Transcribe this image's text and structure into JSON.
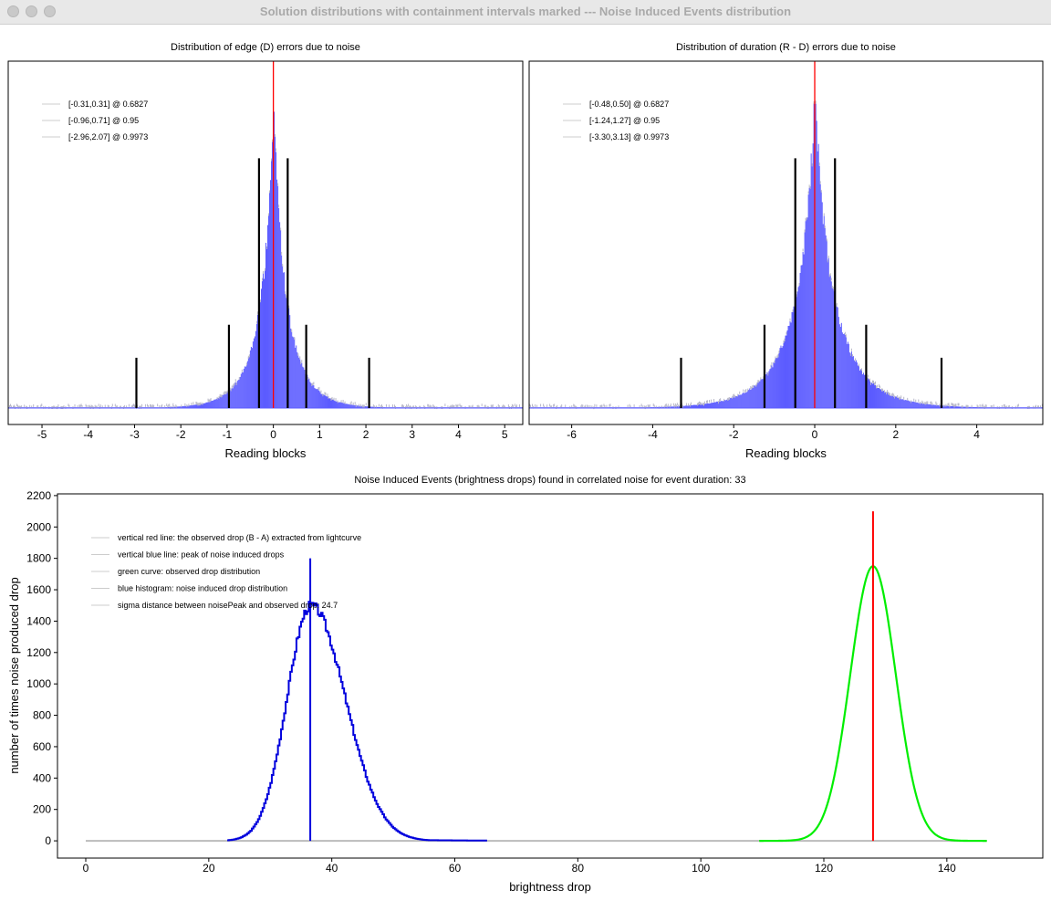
{
  "window": {
    "title": "Solution distributions with containment intervals marked --- Noise Induced Events distribution"
  },
  "colors": {
    "histogram": "#5b5bff",
    "red_line": "#ff0000",
    "blue": "#0000dd",
    "green": "#00ee00",
    "legend_line": "#cccccc",
    "interval_bar": "#000000"
  },
  "chart_data": [
    {
      "type": "bar",
      "title": "Distribution of edge (D) errors due to noise",
      "xlabel": "Reading blocks",
      "ylabel": "",
      "xlim": [
        -5.73,
        5.39
      ],
      "xticks": [
        "-5",
        "-4",
        "-3",
        "-2",
        "-1",
        "0",
        "1",
        "2",
        "3",
        "4",
        "5"
      ],
      "xtick_values": [
        -5,
        -4,
        -3,
        -2,
        -1,
        0,
        1,
        2,
        3,
        4,
        5
      ],
      "distribution": {
        "kind": "laplace-like",
        "center": 0,
        "scale": 0.22,
        "peak": 0.94
      },
      "center_line": 0,
      "intervals": [
        {
          "label": "[-0.31,0.31] @ 0.6827",
          "low": -0.31,
          "high": 0.31,
          "level": 0.6827,
          "bar_height": 0.72
        },
        {
          "label": "[-0.96,0.71] @ 0.95",
          "low": -0.96,
          "high": 0.71,
          "level": 0.95,
          "bar_height": 0.24
        },
        {
          "label": "[-2.96,2.07] @ 0.9973",
          "low": -2.96,
          "high": 2.07,
          "level": 0.9973,
          "bar_height": 0.145
        }
      ],
      "legend_position": "top-left"
    },
    {
      "type": "bar",
      "title": "Distribution of duration (R - D) errors due to noise",
      "xlabel": "Reading blocks",
      "ylabel": "",
      "xlim": [
        -7.05,
        5.63
      ],
      "xticks": [
        "-6",
        "-4",
        "-2",
        "0",
        "2",
        "4"
      ],
      "xtick_values": [
        -6,
        -4,
        -2,
        0,
        2,
        4
      ],
      "distribution": {
        "kind": "laplace-like",
        "center": 0,
        "scale": 0.38,
        "peak": 0.94
      },
      "center_line": 0,
      "intervals": [
        {
          "label": "[-0.48,0.50] @ 0.6827",
          "low": -0.48,
          "high": 0.5,
          "level": 0.6827,
          "bar_height": 0.72
        },
        {
          "label": "[-1.24,1.27] @ 0.95",
          "low": -1.24,
          "high": 1.27,
          "level": 0.95,
          "bar_height": 0.24
        },
        {
          "label": "[-3.30,3.13] @ 0.9973",
          "low": -3.3,
          "high": 3.13,
          "level": 0.9973,
          "bar_height": 0.145
        }
      ],
      "legend_position": "top-left"
    },
    {
      "type": "line",
      "title": "Noise Induced Events (brightness drops) found in correlated noise for event duration: 33",
      "xlabel": "brightness drop",
      "ylabel": "number of times noise produced drop",
      "xlim": [
        -4.6,
        155.6
      ],
      "ylim": [
        -110,
        2211
      ],
      "xticks": [
        "0",
        "20",
        "40",
        "60",
        "80",
        "100",
        "120",
        "140"
      ],
      "xtick_values": [
        0,
        20,
        40,
        60,
        80,
        100,
        120,
        140
      ],
      "yticks": [
        "0",
        "200",
        "400",
        "600",
        "800",
        "1000",
        "1200",
        "1400",
        "1600",
        "1800",
        "2000",
        "2200"
      ],
      "ytick_values": [
        0,
        200,
        400,
        600,
        800,
        1000,
        1200,
        1400,
        1600,
        1800,
        2000,
        2200
      ],
      "series": [
        {
          "name": "blue histogram: noise induced drop distribution",
          "kind": "skewed-gaussian",
          "peak_x": 36.5,
          "peak_y": 1500,
          "sigma_left": 3.9,
          "sigma_right": 5.6,
          "x_range": [
            23,
            65
          ]
        },
        {
          "name": "green curve: observed drop distribution",
          "kind": "gaussian",
          "mean": 128,
          "peak_y": 1750,
          "sigma": 3.7,
          "x_range": [
            109.5,
            146.5
          ]
        },
        {
          "name": "baseline",
          "kind": "constant",
          "y": 0,
          "x_range": [
            0,
            146.5
          ]
        }
      ],
      "vlines": [
        {
          "name": "observed drop",
          "x": 128,
          "y_top": 2100,
          "color": "red"
        },
        {
          "name": "noise peak",
          "x": 36.5,
          "y_top": 1800,
          "color": "blue"
        }
      ],
      "legend": [
        "vertical red line: the observed drop (B - A) extracted from lightcurve",
        "vertical blue line: peak of noise induced drops",
        "green curve: observed drop distribution",
        "blue histogram: noise induced drop distribution",
        "sigma distance between noisePeak and observed drop: 24.7"
      ],
      "legend_position": "top-left"
    }
  ]
}
